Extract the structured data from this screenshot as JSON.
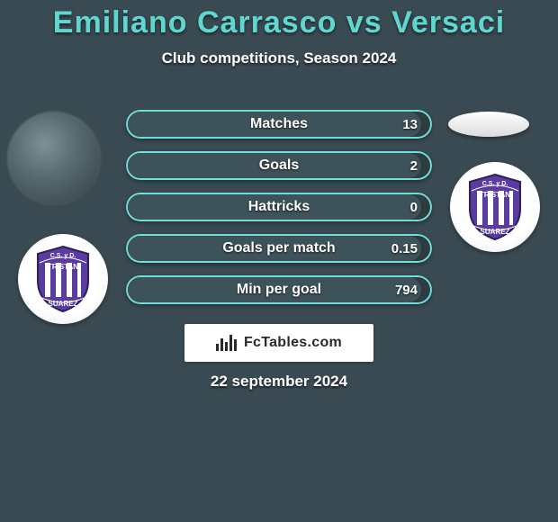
{
  "background_color": "#3a4a52",
  "text_color": "#ffffff",
  "title_color": "#5fd6d0",
  "title": "Emiliano Carrasco vs Versaci",
  "subtitle": "Club competitions, Season 2024",
  "date": "22 september 2024",
  "fctables_label": "FcTables.com",
  "club": {
    "top_text": "C.S. y D.",
    "mid_text": "TRISTAN",
    "bot_text": "SUAREZ",
    "shield_fill": "#5a3ca0",
    "stripe_fill": "#ffffff",
    "outline": "#2f1e58"
  },
  "bars": {
    "track_bg": "#2e3b41",
    "track_border": "#6fe0d9",
    "fill_color": "#3e525a",
    "label_color": "#ffffff",
    "value_color": "#ffffff",
    "items": [
      {
        "label": "Matches",
        "value": "13",
        "fill_pct": 96
      },
      {
        "label": "Goals",
        "value": "2",
        "fill_pct": 96
      },
      {
        "label": "Hattricks",
        "value": "0",
        "fill_pct": 96
      },
      {
        "label": "Goals per match",
        "value": "0.15",
        "fill_pct": 96
      },
      {
        "label": "Min per goal",
        "value": "794",
        "fill_pct": 96
      }
    ]
  }
}
